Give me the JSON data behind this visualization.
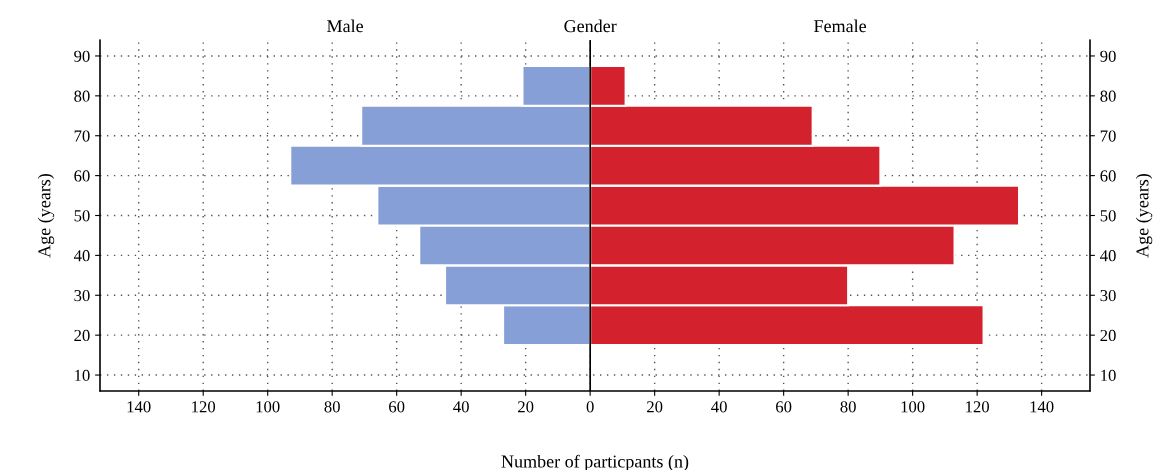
{
  "chart_data": {
    "type": "bar",
    "orientation": "horizontal",
    "stacked": true,
    "annotations": [
      "Male",
      "Gender",
      "Female"
    ],
    "xlabel": "Number of particpants (n)",
    "ylabel": "Age (years)",
    "y2label": "Age (years)",
    "x": [
      22.5,
      32.5,
      42.5,
      52.5,
      62.5,
      72.5,
      82.5
    ],
    "series": [
      {
        "color": "#869fd7",
        "values": [
          -27,
          -45,
          -53,
          -66,
          -93,
          -71,
          -21
        ]
      },
      {
        "color": "#d3212e",
        "values": [
          122,
          80,
          113,
          133,
          90,
          69,
          11
        ]
      }
    ],
    "xlim": [
      -152,
      155
    ],
    "xticks": [
      {
        "value": -140,
        "label": "140"
      },
      {
        "value": -120,
        "label": "120"
      },
      {
        "value": -100,
        "label": "100"
      },
      {
        "value": -80,
        "label": "80"
      },
      {
        "value": -60,
        "label": "60"
      },
      {
        "value": -40,
        "label": "40"
      },
      {
        "value": -20,
        "label": "20"
      },
      0,
      20,
      40,
      60,
      80,
      100,
      120,
      140
    ],
    "ylim": [
      6,
      94
    ],
    "yticks": [
      10,
      20,
      30,
      40,
      50,
      60,
      70,
      80,
      90
    ],
    "y2lim": [
      6,
      94
    ],
    "y2ticks": [
      10,
      20,
      30,
      40,
      50,
      60,
      70,
      80,
      90
    ],
    "ref_lines": [
      {
        "axis": "x",
        "value": 0,
        "color": "#000000"
      }
    ],
    "grid": true,
    "legend": false
  }
}
